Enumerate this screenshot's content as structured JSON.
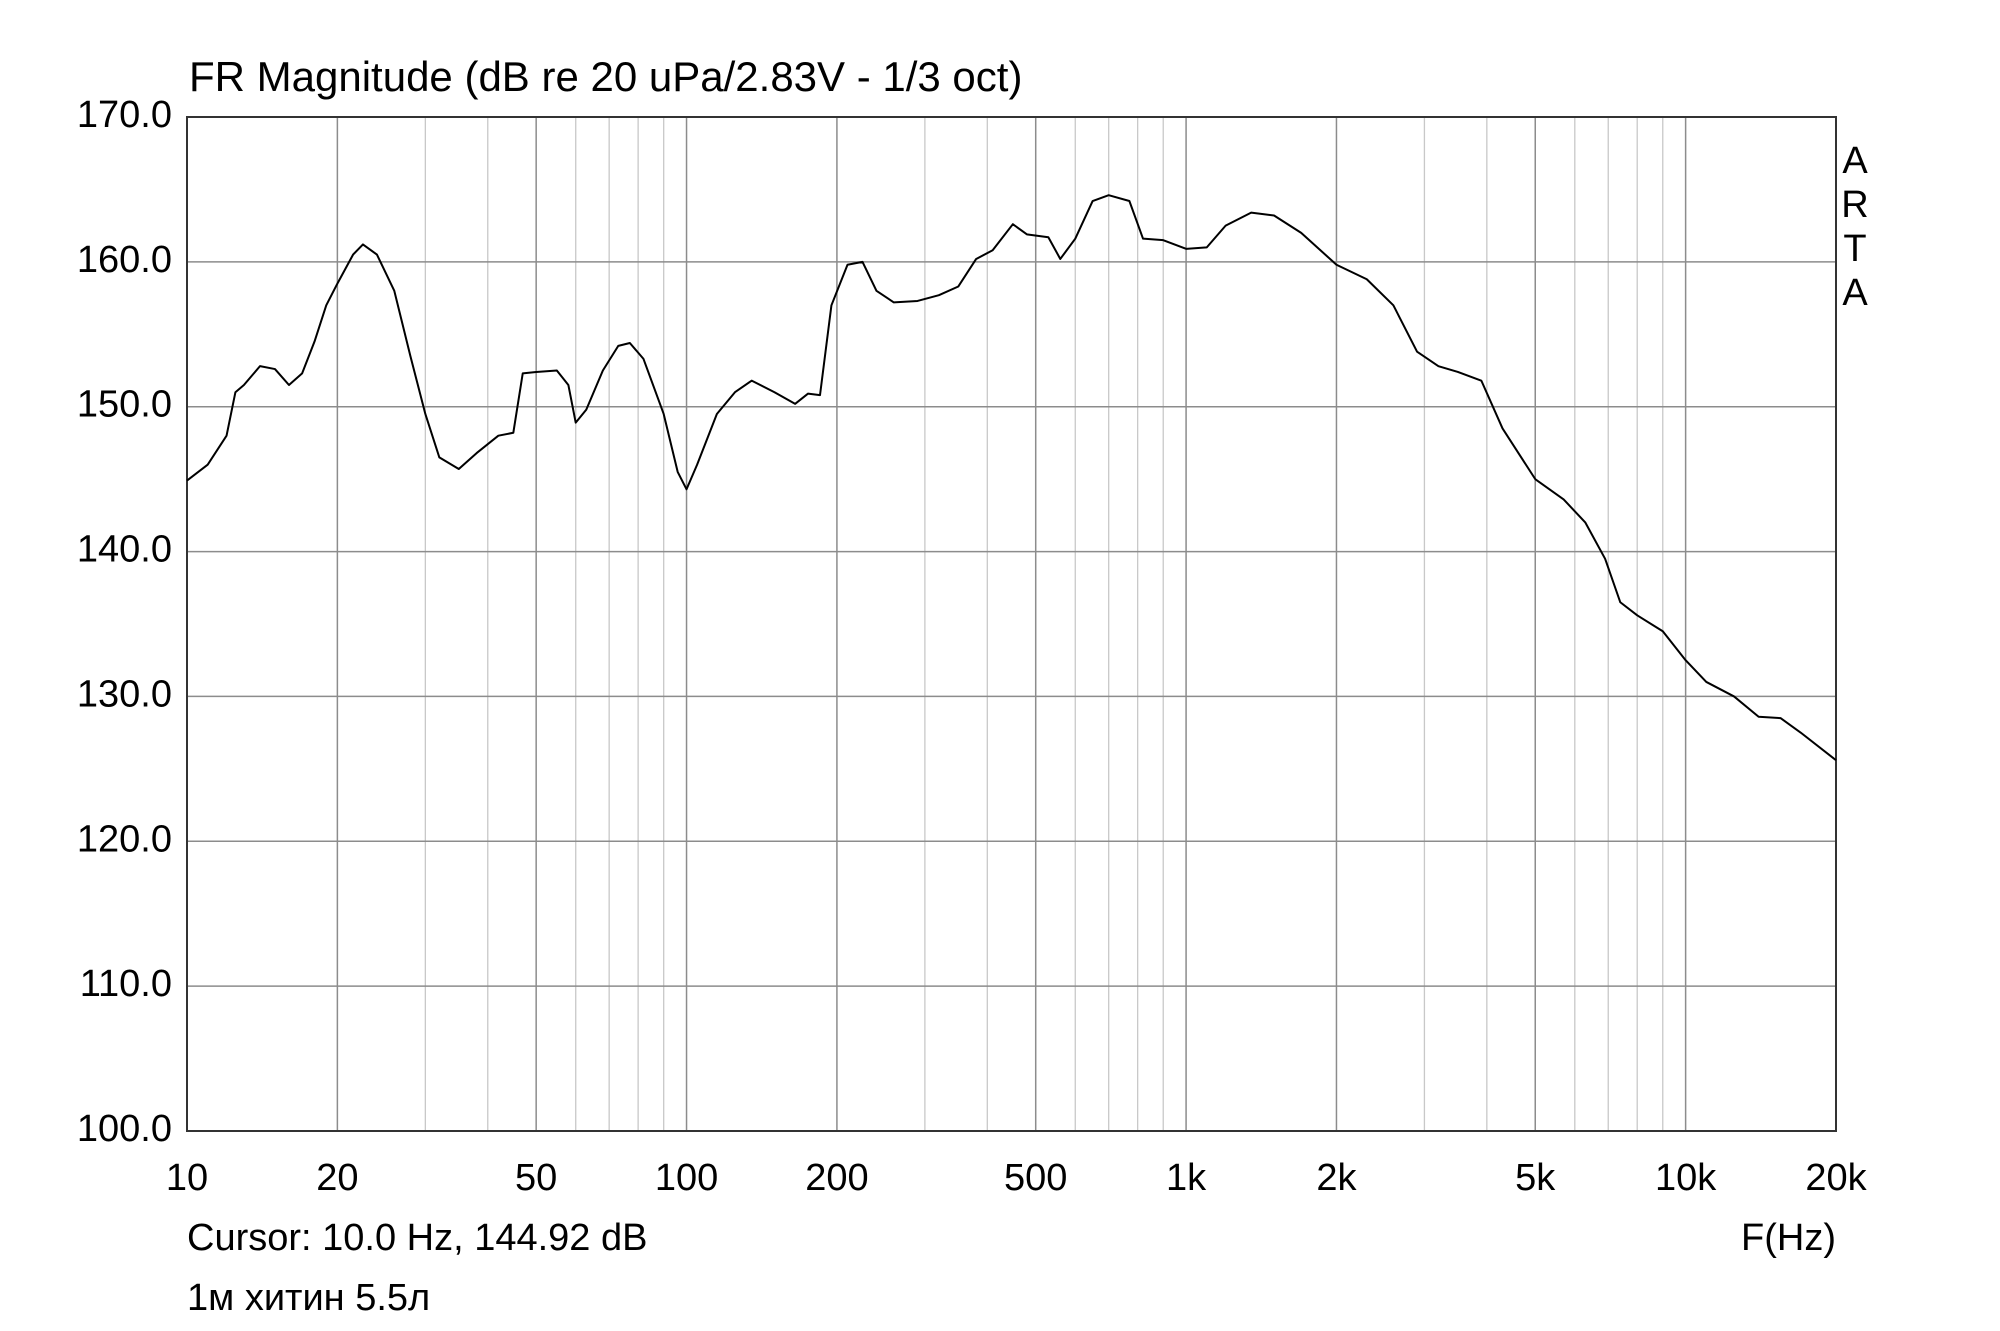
{
  "chart_data": {
    "type": "line",
    "title": "FR Magnitude (dB re 20 uPa/2.83V - 1/3 oct)",
    "x_label": "F(Hz)",
    "cursor": "Cursor: 10.0 Hz, 144.92 dB",
    "note": "1м хитин 5.5л",
    "watermark": "ARTA",
    "x_log": true,
    "grid": true,
    "xlim": [
      10,
      20000
    ],
    "ylim": [
      100,
      170
    ],
    "xticks": [
      10,
      20,
      50,
      100,
      200,
      500,
      {
        "value": 1000,
        "label": "1k"
      },
      {
        "value": 2000,
        "label": "2k"
      },
      {
        "value": 5000,
        "label": "5k"
      },
      {
        "value": 10000,
        "label": "10k"
      },
      {
        "value": 20000,
        "label": "20k"
      }
    ],
    "x_minor_ticks": [
      30,
      40,
      60,
      70,
      80,
      90,
      300,
      400,
      600,
      700,
      800,
      900,
      3000,
      4000,
      6000,
      7000,
      8000,
      9000
    ],
    "yticks": [
      {
        "value": 100,
        "label": "100.0"
      },
      {
        "value": 110,
        "label": "110.0"
      },
      {
        "value": 120,
        "label": "120.0"
      },
      {
        "value": 130,
        "label": "130.0"
      },
      {
        "value": 140,
        "label": "140.0"
      },
      {
        "value": 150,
        "label": "150.0"
      },
      {
        "value": 160,
        "label": "160.0"
      },
      {
        "value": 170,
        "label": "170.0"
      }
    ],
    "x": [
      10,
      11,
      12,
      12.5,
      13,
      14,
      15,
      16,
      17,
      18,
      19,
      20,
      21.5,
      22.5,
      24,
      26,
      28,
      30,
      32,
      35,
      38,
      42,
      45,
      47,
      50,
      55,
      58,
      60,
      63,
      68,
      73,
      77,
      82,
      90,
      96,
      100,
      105,
      115,
      125,
      135,
      150,
      165,
      175,
      185,
      195,
      210,
      225,
      240,
      260,
      290,
      320,
      350,
      380,
      410,
      450,
      480,
      530,
      560,
      600,
      650,
      700,
      770,
      820,
      900,
      1000,
      1100,
      1200,
      1350,
      1500,
      1700,
      2000,
      2300,
      2600,
      2900,
      3200,
      3500,
      3900,
      4300,
      5000,
      5700,
      6300,
      6900,
      7400,
      8000,
      9000,
      10000,
      11000,
      12500,
      14000,
      15500,
      17000,
      20000
    ],
    "series": [
      {
        "color": "#000000",
        "values": [
          144.9,
          146,
          148,
          151,
          151.5,
          152.8,
          152.6,
          151.5,
          152.3,
          154.5,
          157,
          158.5,
          160.5,
          161.2,
          160.5,
          158,
          153.5,
          149.5,
          146.5,
          145.7,
          146.8,
          148,
          148.2,
          152.3,
          152.4,
          152.5,
          151.5,
          148.9,
          149.8,
          152.5,
          154.2,
          154.4,
          153.3,
          149.5,
          145.5,
          144.3,
          146,
          149.5,
          151,
          151.8,
          151,
          150.2,
          150.9,
          150.8,
          157,
          159.8,
          160,
          158,
          157.2,
          157.3,
          157.7,
          158.3,
          160.2,
          160.8,
          162.6,
          161.9,
          161.7,
          160.2,
          161.6,
          164.2,
          164.6,
          164.2,
          161.6,
          161.5,
          160.9,
          161,
          162.5,
          163.4,
          163.2,
          162,
          159.8,
          158.8,
          157,
          153.8,
          152.8,
          152.4,
          151.8,
          148.5,
          145,
          143.6,
          142,
          139.5,
          136.5,
          135.6,
          134.5,
          132.5,
          131,
          130,
          128.6,
          128.5,
          127.5,
          125.6
        ]
      }
    ]
  }
}
